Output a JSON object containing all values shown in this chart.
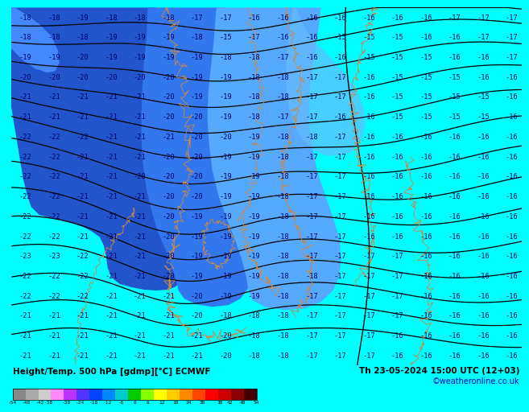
{
  "title_left": "Height/Temp. 500 hPa [gdmp][°C] ECMWF",
  "title_right": "Th 23-05-2024 15:00 UTC (12+03)",
  "subtitle_right": "©weatheronline.co.uk",
  "bg_cyan": "#00FFFF",
  "bg_blue_dark": "#3366EE",
  "bg_blue_mid": "#4488FF",
  "bg_blue_light": "#55AAFF",
  "map_bg": "#00FFFF",
  "colorbar_colors": [
    "#888888",
    "#AAAAAA",
    "#CCCCCC",
    "#FF88FF",
    "#BB33FF",
    "#5533FF",
    "#0044FF",
    "#0088FF",
    "#00CCCC",
    "#00CC00",
    "#88FF00",
    "#FFFF00",
    "#FFCC00",
    "#FF8800",
    "#FF4400",
    "#FF0000",
    "#CC0000",
    "#880000",
    "#440000"
  ],
  "tick_vals": [
    -54,
    -48,
    -42,
    -38,
    -30,
    -24,
    -18,
    -12,
    -6,
    0,
    6,
    12,
    18,
    24,
    30,
    38,
    42,
    48,
    54
  ],
  "temp_grid": [
    [
      -18,
      -18,
      -19,
      -18,
      -18,
      -18,
      -17,
      -17,
      -16,
      -16,
      -16,
      -16,
      -16,
      -16,
      -16,
      -17,
      -17,
      -17
    ],
    [
      -18,
      -18,
      -18,
      -19,
      -19,
      -19,
      -18,
      -15,
      -17,
      -16,
      -16,
      -15,
      -15,
      -15,
      -16,
      -16,
      -17,
      -17
    ],
    [
      -19,
      -19,
      -20,
      -19,
      -19,
      -19,
      -19,
      -18,
      -18,
      -17,
      -16,
      -16,
      -15,
      -15,
      -15,
      -16,
      -16,
      -17
    ],
    [
      -20,
      -20,
      -20,
      -20,
      -20,
      -20,
      -19,
      -19,
      -18,
      -18,
      -17,
      -17,
      -16,
      -15,
      -15,
      -15,
      -16,
      -16
    ],
    [
      -21,
      -21,
      -21,
      -21,
      -21,
      -20,
      -19,
      -19,
      -18,
      -18,
      -17,
      -17,
      -16,
      -15,
      -15,
      -15,
      -15,
      -16
    ],
    [
      -21,
      -21,
      -21,
      -21,
      -21,
      -20,
      -20,
      -19,
      -18,
      -17,
      -17,
      -16,
      -16,
      -15,
      -15,
      -15,
      -15,
      -16
    ],
    [
      -22,
      -22,
      -22,
      -21,
      -21,
      -21,
      -20,
      -20,
      -19,
      -18,
      -18,
      -17,
      -16,
      -16,
      -16,
      -16,
      -16,
      -16
    ],
    [
      -22,
      -22,
      -21,
      -21,
      -21,
      -20,
      -20,
      -19,
      -19,
      -18,
      -17,
      -17,
      -16,
      -16,
      -16,
      -16,
      -16,
      -16
    ],
    [
      -22,
      -22,
      -21,
      -21,
      -20,
      -20,
      -20,
      -19,
      -19,
      -18,
      -17,
      -17,
      -16,
      -16,
      -16,
      -16,
      -16,
      -16
    ],
    [
      -22,
      -22,
      -21,
      -21,
      -21,
      -20,
      -20,
      -19,
      -19,
      -18,
      -17,
      -17,
      -16,
      -16,
      -16,
      -16,
      -16,
      -16
    ],
    [
      -22,
      -22,
      -21,
      -21,
      -21,
      -20,
      -19,
      -19,
      -19,
      -18,
      -17,
      -17,
      -16,
      -16,
      -16,
      -16,
      -16,
      -16
    ],
    [
      -22,
      -22,
      -21,
      -21,
      -21,
      -20,
      -19,
      -19,
      -19,
      -18,
      -17,
      -17,
      -16,
      -16,
      -16,
      -16,
      -16,
      -16
    ],
    [
      -23,
      -23,
      -22,
      -21,
      -21,
      -20,
      -19,
      -19,
      -19,
      -18,
      -17,
      -17,
      -17,
      -17,
      -16,
      -16,
      -16,
      -16
    ],
    [
      -22,
      -22,
      -22,
      -21,
      -21,
      -20,
      -19,
      -19,
      -19,
      -18,
      -18,
      -17,
      -17,
      -17,
      -16,
      -16,
      -16,
      -16
    ],
    [
      -22,
      -22,
      -22,
      -21,
      -21,
      -21,
      -20,
      -19,
      -19,
      -18,
      -17,
      -17,
      -17,
      -17,
      -16,
      -16,
      -16,
      -16
    ],
    [
      -21,
      -21,
      -21,
      -21,
      -21,
      -21,
      -20,
      -18,
      -18,
      -18,
      -17,
      -17,
      -17,
      -17,
      -16,
      -16,
      -16,
      -16
    ],
    [
      -21,
      -21,
      -21,
      -21,
      -21,
      -21,
      -21,
      -20,
      -18,
      -18,
      -17,
      -17,
      -17,
      -16,
      -16,
      -16,
      -16,
      -16
    ],
    [
      -21,
      -21,
      -21,
      -21,
      -21,
      -21,
      -21,
      -20,
      -18,
      -18,
      -17,
      -17,
      -17,
      -16,
      -16,
      -16,
      -16,
      -16
    ]
  ]
}
